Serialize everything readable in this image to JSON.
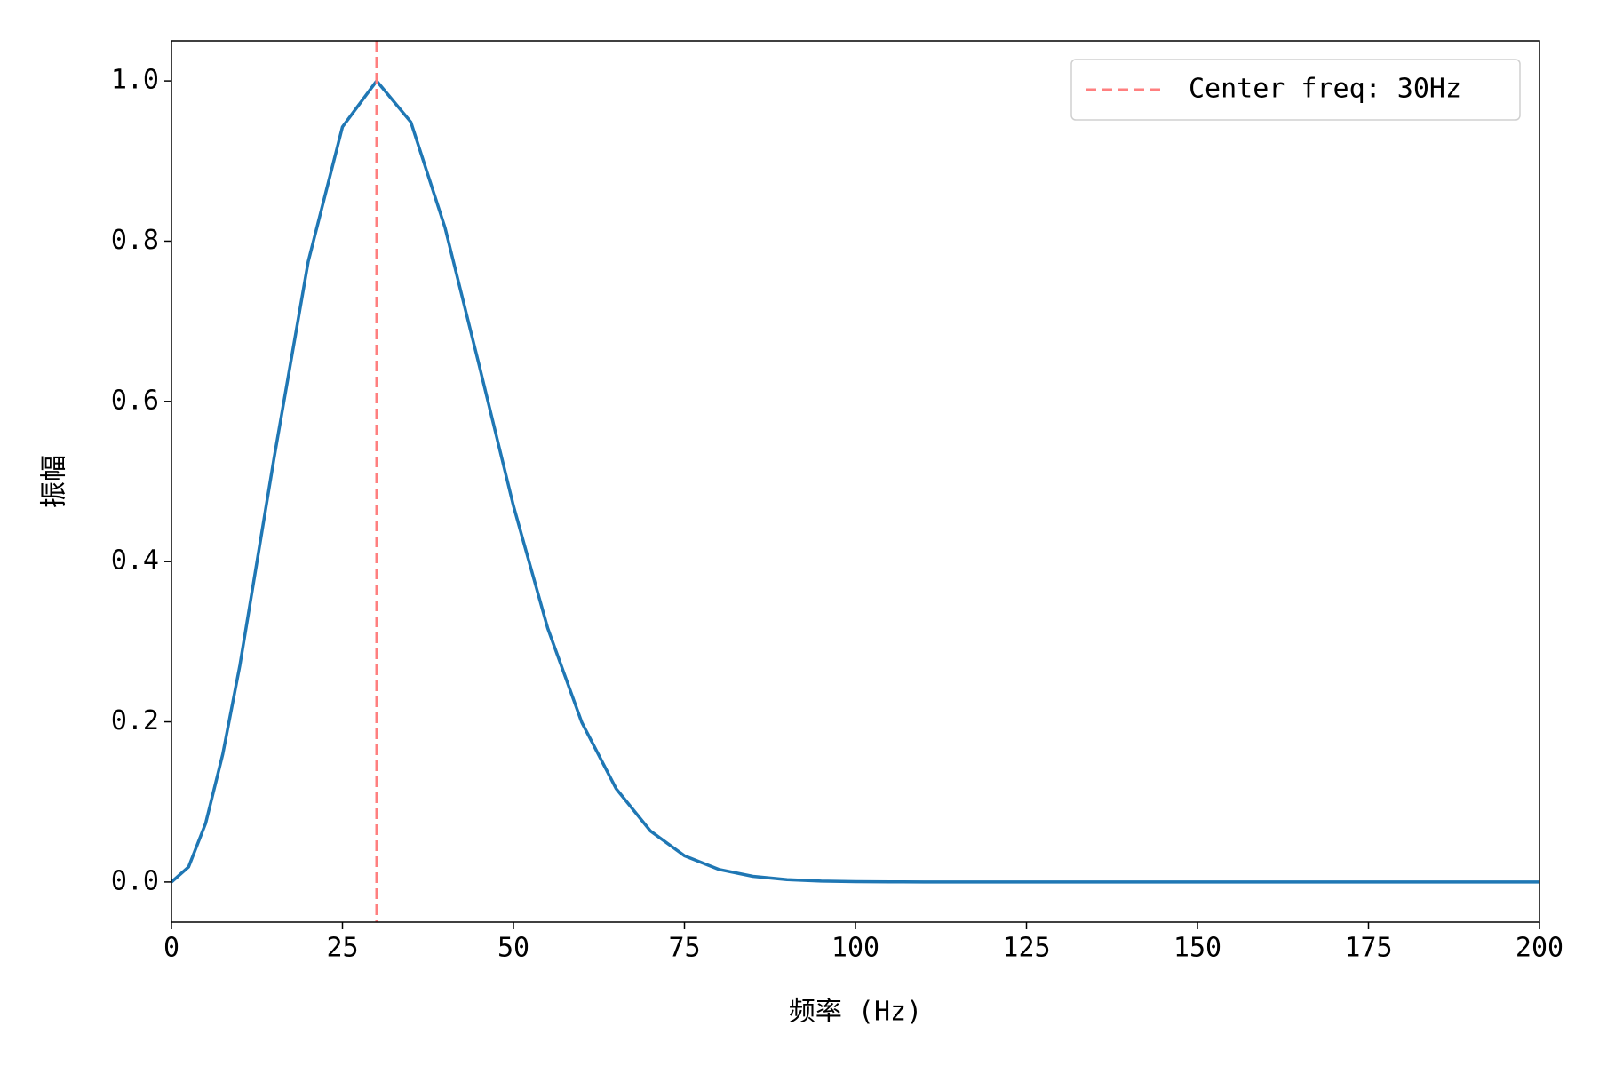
{
  "chart_data": {
    "type": "line",
    "xlabel": "频率 (Hz)",
    "ylabel": "振幅",
    "x": [
      0,
      2.5,
      5,
      7.5,
      10,
      15,
      20,
      25,
      30,
      35,
      40,
      45,
      50,
      55,
      60,
      65,
      70,
      75,
      80,
      85,
      90,
      95,
      100,
      105,
      110,
      120,
      140,
      160,
      180,
      200
    ],
    "series": [
      {
        "color": "#1f77b4",
        "values": [
          0,
          0.0188,
          0.0734,
          0.1596,
          0.2703,
          0.5292,
          0.7746,
          0.9426,
          1.0,
          0.9486,
          0.8167,
          0.6446,
          0.4695,
          0.317,
          0.1991,
          0.1167,
          0.0639,
          0.0328,
          0.0158,
          0.0071,
          0.003,
          0.0012,
          0.0005,
          0.0002,
          0.0001,
          0,
          0,
          0,
          0,
          0
        ]
      }
    ],
    "vline": {
      "x": 30,
      "label": "Center freq: 30Hz",
      "color": "#ff7f7f"
    },
    "legend": "upper right",
    "xlim": [
      0,
      200
    ],
    "xticks": [
      0,
      25,
      50,
      75,
      100,
      125,
      150,
      175,
      200
    ],
    "ylim": [
      -0.05,
      1.05
    ],
    "yticks": [
      {
        "value": 0,
        "label": "0.0"
      },
      {
        "value": 0.2,
        "label": "0.2"
      },
      {
        "value": 0.4,
        "label": "0.4"
      },
      {
        "value": 0.6,
        "label": "0.6"
      },
      {
        "value": 0.8,
        "label": "0.8"
      },
      {
        "value": 1.0,
        "label": "1.0"
      }
    ]
  }
}
